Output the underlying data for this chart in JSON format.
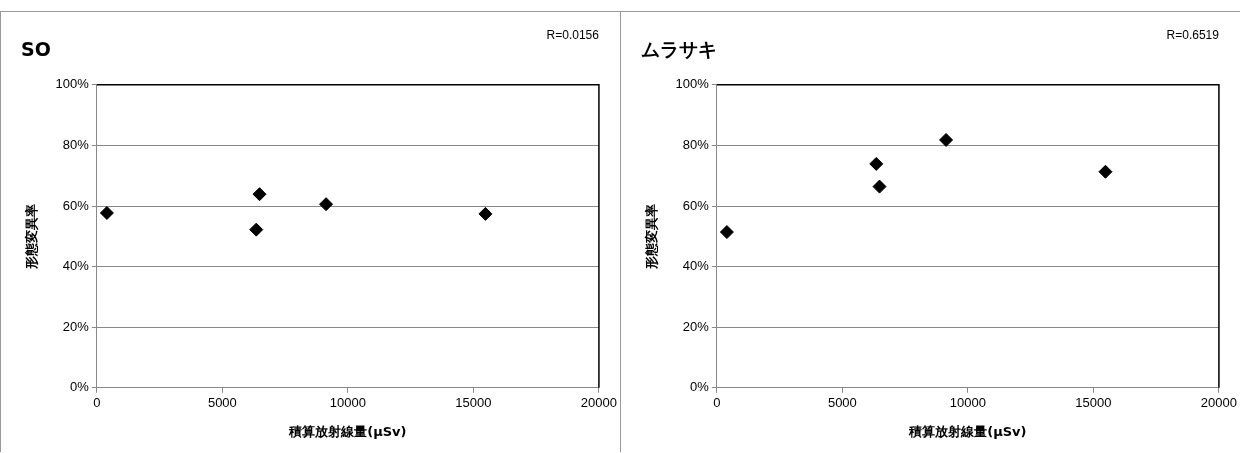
{
  "chart_data": [
    {
      "type": "scatter",
      "title": "SO",
      "xlabel": "積算放射線量(μSv)",
      "ylabel": "形態変異率",
      "annotations": [
        "R=0.0156"
      ],
      "x": [
        400,
        6350,
        6480,
        9130,
        15480
      ],
      "series": [
        {
          "color": "#000000",
          "values": [
            57.7,
            52.2,
            63.9,
            60.6,
            57.4
          ]
        }
      ],
      "xlim": [
        0,
        20000
      ],
      "xticks": [
        0,
        5000,
        10000,
        15000,
        20000
      ],
      "ylim": [
        0,
        100
      ],
      "yticks": [
        {
          "value": 0,
          "label": "0%"
        },
        {
          "value": 20,
          "label": "20%"
        },
        {
          "value": 40,
          "label": "40%"
        },
        {
          "value": 60,
          "label": "60%"
        },
        {
          "value": 80,
          "label": "80%"
        },
        {
          "value": 100,
          "label": "100%"
        }
      ],
      "grid": "y",
      "marker": "diamond"
    },
    {
      "type": "scatter",
      "title": "ムラサキ",
      "xlabel": "積算放射線量(μSv)",
      "ylabel": "形態変異率",
      "annotations": [
        "R=0.6519"
      ],
      "x": [
        400,
        6350,
        6480,
        9130,
        15480
      ],
      "series": [
        {
          "color": "#000000",
          "values": [
            51.4,
            73.9,
            66.4,
            81.8,
            71.3
          ]
        }
      ],
      "xlim": [
        0,
        20000
      ],
      "xticks": [
        0,
        5000,
        10000,
        15000,
        20000
      ],
      "ylim": [
        0,
        100
      ],
      "yticks": [
        {
          "value": 0,
          "label": "0%"
        },
        {
          "value": 20,
          "label": "20%"
        },
        {
          "value": 40,
          "label": "40%"
        },
        {
          "value": 60,
          "label": "60%"
        },
        {
          "value": 80,
          "label": "80%"
        },
        {
          "value": 100,
          "label": "100%"
        }
      ],
      "grid": "y",
      "marker": "diamond"
    }
  ]
}
